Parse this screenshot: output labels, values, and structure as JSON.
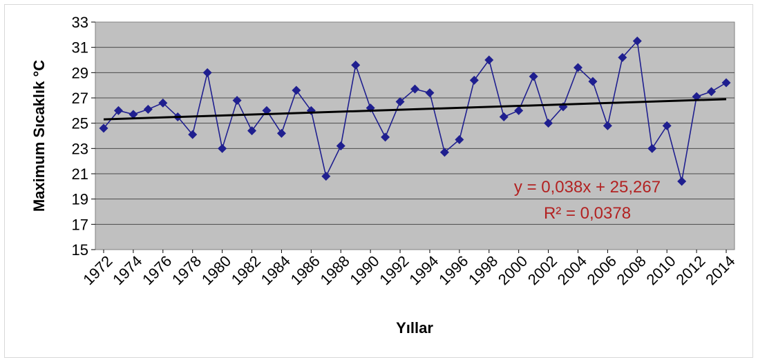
{
  "chart_data": {
    "type": "line",
    "xlabel": "Yıllar",
    "ylabel": "Maximum Sıcaklık °C",
    "ylim": [
      15,
      33
    ],
    "yticks": [
      15,
      17,
      19,
      21,
      23,
      25,
      27,
      29,
      31,
      33
    ],
    "xlim": [
      1972,
      2014
    ],
    "xtick_labels": [
      "1972",
      "1974",
      "1976",
      "1978",
      "1980",
      "1982",
      "1984",
      "1986",
      "1988",
      "1990",
      "1992",
      "1994",
      "1996",
      "1998",
      "2000",
      "2002",
      "2004",
      "2006",
      "2008",
      "2010",
      "2012",
      "2014"
    ],
    "grid": "horizontal",
    "series": [
      {
        "color": "#1f1f8f",
        "x": [
          1972,
          1973,
          1974,
          1975,
          1976,
          1977,
          1978,
          1979,
          1980,
          1981,
          1982,
          1983,
          1984,
          1985,
          1986,
          1987,
          1988,
          1989,
          1990,
          1991,
          1992,
          1993,
          1994,
          1995,
          1996,
          1997,
          1998,
          1999,
          2000,
          2001,
          2002,
          2003,
          2004,
          2005,
          2006,
          2007,
          2008,
          2009,
          2010,
          2011,
          2012,
          2013,
          2014
        ],
        "values": [
          24.6,
          26.0,
          25.7,
          26.1,
          26.6,
          25.5,
          24.1,
          29.0,
          23.0,
          26.8,
          24.4,
          26.0,
          24.2,
          27.6,
          26.0,
          20.8,
          23.2,
          29.6,
          26.2,
          23.9,
          26.7,
          27.7,
          27.4,
          22.7,
          23.7,
          28.4,
          30.0,
          25.5,
          26.0,
          28.7,
          25.0,
          26.3,
          29.4,
          28.3,
          24.8,
          30.2,
          31.5,
          23.0,
          24.8,
          20.4,
          27.1,
          27.5,
          28.2
        ]
      }
    ],
    "trendline": {
      "color": "#000000",
      "slope": 0.038,
      "intercept": 25.267
    },
    "annotations": [
      "y = 0,038x + 25,267",
      "R² = 0,0378"
    ]
  }
}
